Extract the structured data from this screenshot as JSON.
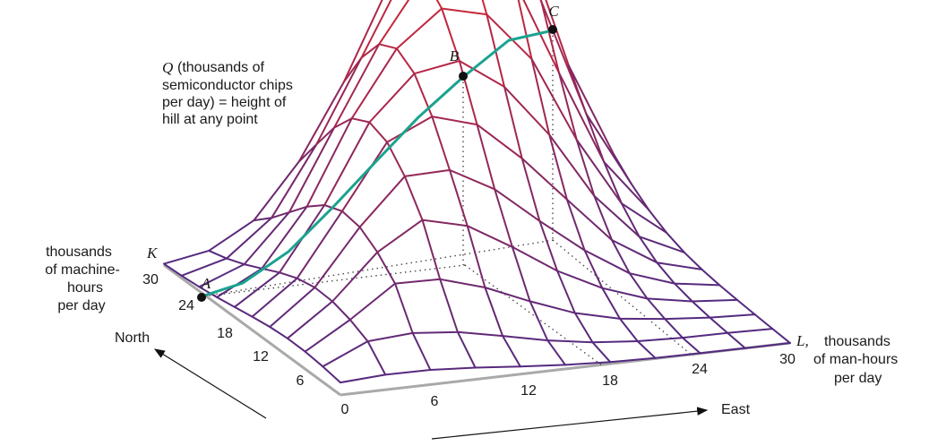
{
  "annotation": {
    "lines": [
      "(thousands of",
      "semiconductor chips",
      "per day) = height of",
      "hill at any point"
    ],
    "symbol": "Q"
  },
  "axes": {
    "k": {
      "symbol": "K",
      "label_lines": [
        "thousands",
        "of machine-",
        "hours",
        "per day"
      ],
      "ticks": [
        "30",
        "24",
        "18",
        "12",
        "6"
      ]
    },
    "l": {
      "symbol": "L,",
      "label_lines": [
        "thousands",
        "of man-hours",
        "per day"
      ],
      "ticks": [
        "0",
        "6",
        "12",
        "18",
        "24",
        "30"
      ]
    },
    "directions": {
      "north": "North",
      "east": "East"
    }
  },
  "points": {
    "a": "A",
    "b": "B",
    "c": "C"
  },
  "colors": {
    "surface_low": "#4b2a85",
    "surface_high": "#e0262b",
    "path": "#1aa38f",
    "axis": "#a9a9a9",
    "point": "#111111"
  }
}
